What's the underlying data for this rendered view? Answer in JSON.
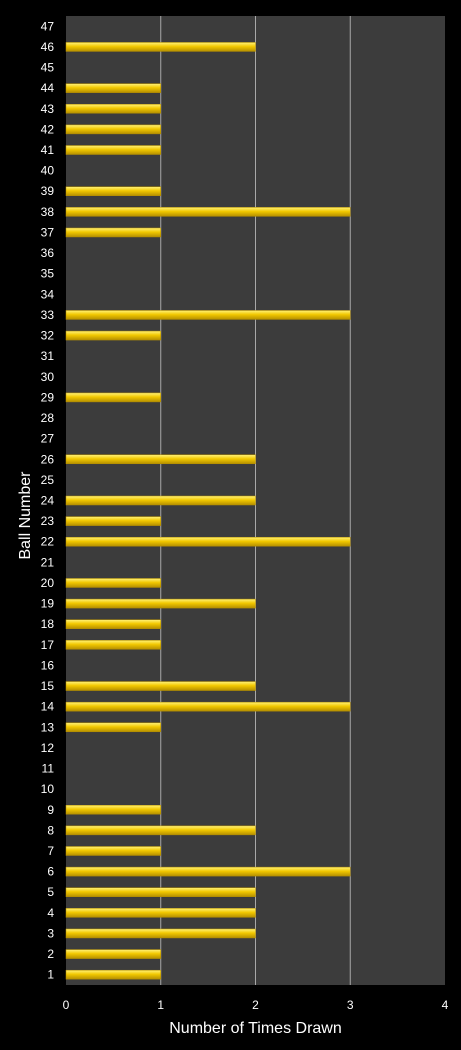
{
  "chart_data": {
    "type": "bar",
    "orientation": "horizontal",
    "title": "",
    "xlabel": "Number of Times Drawn",
    "ylabel": "Ball Number",
    "xlim": [
      0,
      4
    ],
    "x_ticks": [
      "0",
      "1",
      "2",
      "3",
      "4"
    ],
    "grid": true,
    "legend": "none",
    "categories": [
      "1",
      "2",
      "3",
      "4",
      "5",
      "6",
      "7",
      "8",
      "9",
      "10",
      "11",
      "12",
      "13",
      "14",
      "15",
      "16",
      "17",
      "18",
      "19",
      "20",
      "21",
      "22",
      "23",
      "24",
      "25",
      "26",
      "27",
      "28",
      "29",
      "30",
      "31",
      "32",
      "33",
      "34",
      "35",
      "36",
      "37",
      "38",
      "39",
      "40",
      "41",
      "42",
      "43",
      "44",
      "45",
      "46",
      "47"
    ],
    "values": [
      1,
      1,
      2,
      2,
      2,
      3,
      1,
      2,
      1,
      0,
      0,
      0,
      1,
      3,
      2,
      0,
      1,
      1,
      2,
      1,
      0,
      3,
      1,
      2,
      0,
      2,
      0,
      0,
      1,
      0,
      0,
      1,
      3,
      0,
      0,
      0,
      1,
      3,
      1,
      0,
      1,
      1,
      1,
      1,
      0,
      2,
      0
    ]
  },
  "colors": {
    "background": "#000000",
    "plot_area": "#3c3c3c",
    "gridline": "#a8a8a8",
    "bar_fill": "#f2c800",
    "bar_highlight": "#fff27a",
    "bar_shadow": "#b58f00",
    "text": "#ffffff"
  }
}
